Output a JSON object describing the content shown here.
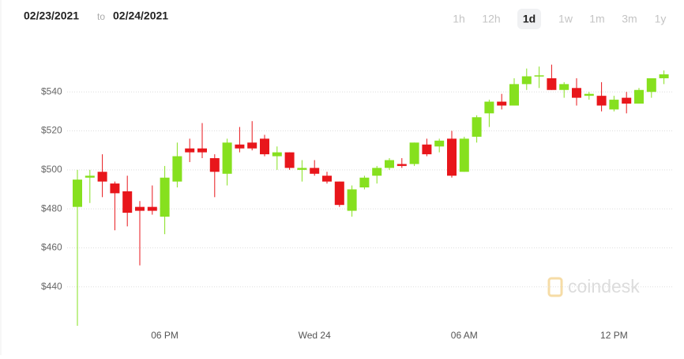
{
  "header": {
    "from": "02/23/2021",
    "separator": "to",
    "to": "02/24/2021",
    "ranges": [
      "1h",
      "12h",
      "1d",
      "1w",
      "1m",
      "3m",
      "1y"
    ],
    "selected_range": 2
  },
  "watermark": "coindesk",
  "chart_data": {
    "type": "candlestick",
    "categories": [
      null,
      null,
      null,
      null,
      null,
      null,
      null,
      "06 PM",
      null,
      null,
      null,
      null,
      null,
      null,
      null,
      null,
      null,
      null,
      null,
      "Wed 24",
      null,
      null,
      null,
      null,
      null,
      null,
      null,
      null,
      null,
      null,
      null,
      "06 AM",
      null,
      null,
      null,
      null,
      null,
      null,
      null,
      null,
      null,
      null,
      null,
      "12 PM",
      null,
      null,
      null,
      null
    ],
    "open": [
      481,
      496,
      499,
      493,
      489,
      481,
      481,
      476,
      494,
      511,
      511,
      506,
      498,
      513,
      514,
      516,
      507,
      509,
      500,
      501,
      497,
      494,
      479,
      491,
      497,
      501,
      503,
      503,
      513,
      512,
      516,
      499,
      517,
      529,
      535,
      533,
      544,
      548,
      547,
      541,
      542,
      538,
      538,
      531,
      537,
      534,
      540,
      547
    ],
    "high": [
      500,
      500,
      508,
      494,
      497,
      484,
      492,
      502,
      514,
      516,
      524,
      508,
      516,
      522,
      525,
      518,
      512,
      509,
      505,
      505,
      499,
      494,
      492,
      497,
      502,
      506,
      506,
      514,
      516,
      516,
      520,
      517,
      528,
      536,
      539,
      547,
      552,
      553,
      554,
      545,
      547,
      540,
      545,
      538,
      540,
      542,
      547,
      551
    ],
    "low": [
      420,
      483,
      486,
      469,
      471,
      451,
      477,
      467,
      491,
      504,
      506,
      486,
      492,
      509,
      510,
      507,
      500,
      500,
      494,
      497,
      493,
      481,
      476,
      490,
      493,
      500,
      501,
      502,
      507,
      509,
      496,
      499,
      514,
      522,
      531,
      533,
      541,
      542,
      541,
      537,
      533,
      536,
      530,
      530,
      529,
      534,
      537,
      544
    ],
    "close": [
      495,
      497,
      494,
      488,
      478,
      479,
      479,
      496,
      507,
      509,
      509,
      499,
      514,
      511,
      511,
      508,
      509,
      501,
      501,
      498,
      494,
      482,
      490,
      496,
      501,
      505,
      502,
      514,
      508,
      515,
      497,
      516,
      527,
      535,
      533,
      544,
      548,
      548.5,
      541,
      544,
      537,
      539,
      533,
      536,
      534,
      541,
      547,
      549
    ],
    "up_color": "#86e01e",
    "down_color": "#e8161b",
    "ylim": [
      420,
      562
    ],
    "yticks": [
      {
        "value": 440,
        "label": "$440"
      },
      {
        "value": 460,
        "label": "$460"
      },
      {
        "value": 480,
        "label": "$480"
      },
      {
        "value": 500,
        "label": "$500"
      },
      {
        "value": 520,
        "label": "$520"
      },
      {
        "value": 540,
        "label": "$540"
      }
    ],
    "grid": true
  }
}
